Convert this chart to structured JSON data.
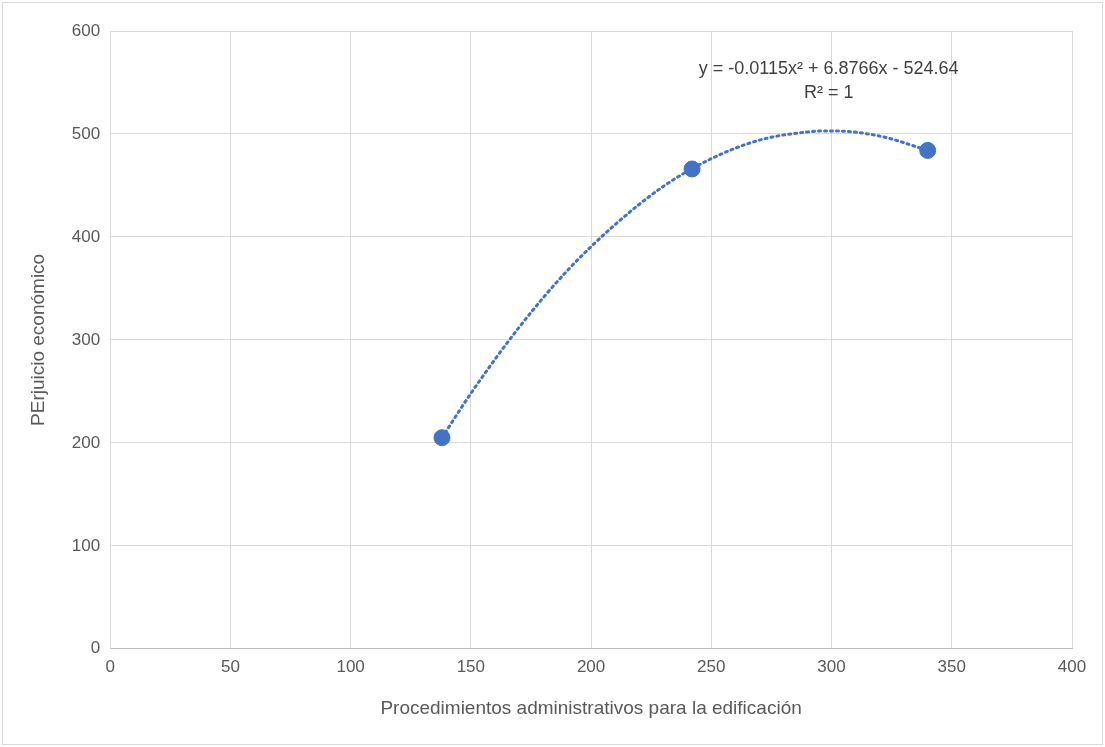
{
  "chart_data": {
    "type": "scatter",
    "xlabel": "Procedimientos administrativos para la edificación",
    "ylabel": "PErjuicio económico",
    "xlim": [
      0,
      400
    ],
    "xticks": [
      0,
      50,
      100,
      150,
      200,
      250,
      300,
      350,
      400
    ],
    "ylim": [
      0,
      600
    ],
    "yticks": [
      0,
      100,
      200,
      300,
      400,
      500,
      600
    ],
    "grid": true,
    "legend": false,
    "annotations": [
      "y = -0.0115x² + 6.8766x - 524.64",
      "R² = 1"
    ],
    "series": [
      {
        "type": "line",
        "color": "#4472c4",
        "line_style": "dotted",
        "marker": "none",
        "x": [
          138,
          150,
          170,
          190,
          210,
          230,
          250,
          270,
          290,
          300,
          320,
          340
        ],
        "values": [
          205,
          248,
          312,
          367,
          412,
          449,
          476,
          494,
          502,
          503,
          498,
          484
        ]
      },
      {
        "type": "scatter",
        "color": "#4472c4",
        "marker": "circle",
        "x": [
          138,
          242,
          340
        ],
        "values": [
          205,
          466,
          484
        ]
      }
    ]
  }
}
